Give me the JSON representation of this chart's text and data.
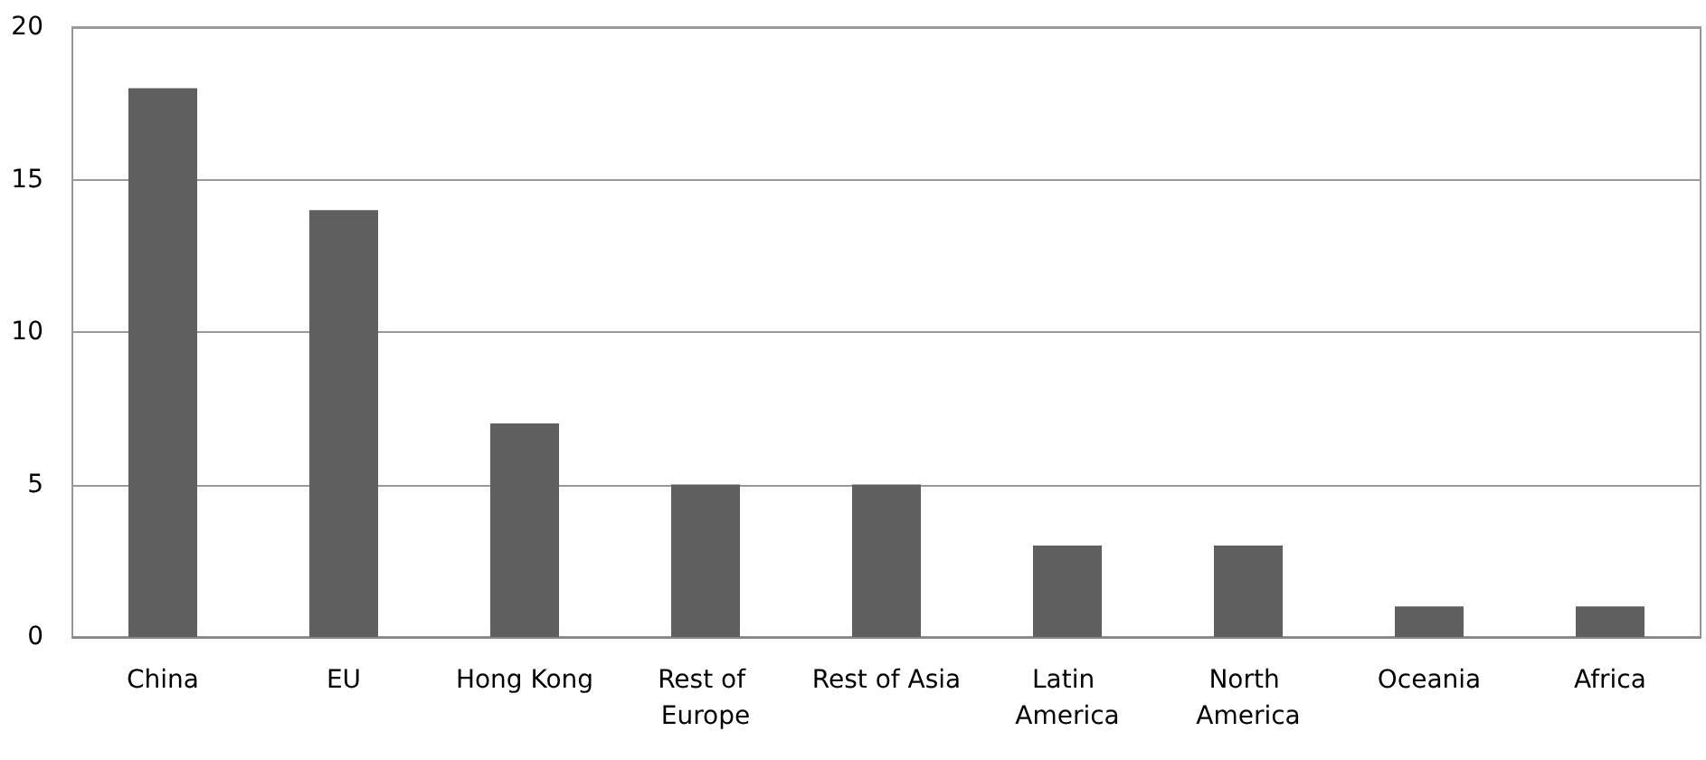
{
  "chart_data": {
    "type": "bar",
    "categories": [
      "China",
      "EU",
      "Hong Kong",
      "Rest of Europe",
      "Rest of Asia",
      "Latin America",
      "North America",
      "Oceania",
      "Africa"
    ],
    "values": [
      18,
      14,
      7,
      5,
      5,
      3,
      3,
      1,
      1
    ],
    "color": "#5f5f5f",
    "ylim": [
      0,
      20
    ],
    "yticks": [
      0,
      5,
      10,
      15,
      20
    ],
    "grid": "y"
  }
}
